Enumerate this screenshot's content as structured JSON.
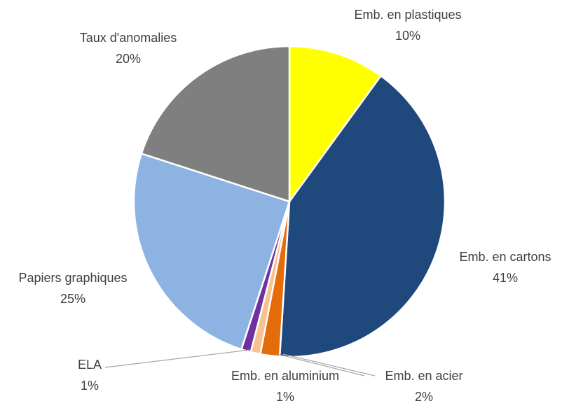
{
  "chart_data": {
    "type": "pie",
    "categories": [
      "Emb. en plastiques",
      "Emb. en cartons",
      "Emb. en acier",
      "Emb. en aluminium",
      "ELA",
      "Papiers graphiques",
      "Taux d'anomalies"
    ],
    "values": [
      10,
      41,
      2,
      1,
      1,
      25,
      20
    ],
    "value_labels": [
      "10%",
      "41%",
      "2%",
      "1%",
      "1%",
      "25%",
      "20%"
    ],
    "colors": [
      "#ffff00",
      "#1f497d",
      "#e46c0a",
      "#fac090",
      "#7030a0",
      "#8db3e2",
      "#7f7f7f"
    ]
  }
}
